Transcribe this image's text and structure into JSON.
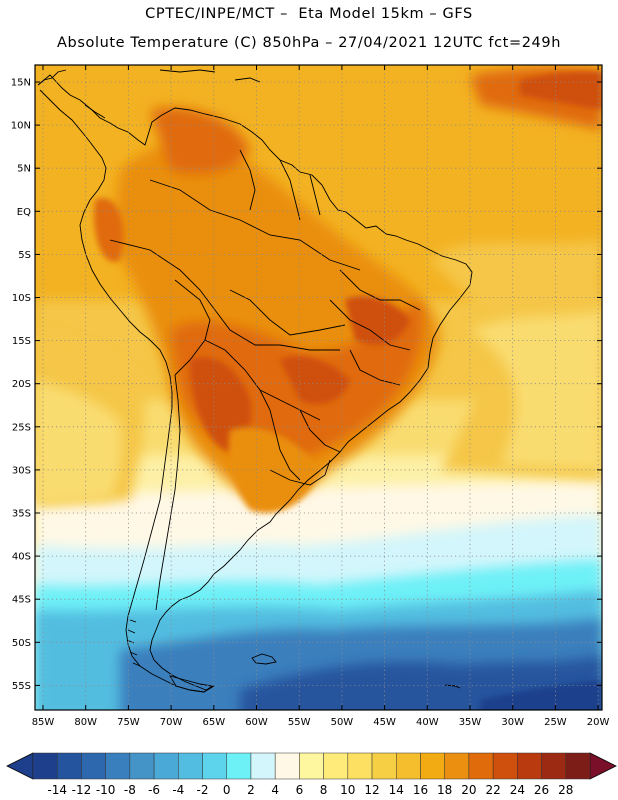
{
  "header": {
    "line1": "CPTEC/INPE/MCT –  Eta Model 15km – GFS",
    "line2": "Absolute Temperature (C) 850hPa – 27/04/2021 12UTC fct=249h"
  },
  "axes": {
    "lat_labels": [
      "15N",
      "10N",
      "5N",
      "EQ",
      "5S",
      "10S",
      "15S",
      "20S",
      "25S",
      "30S",
      "35S",
      "40S",
      "45S",
      "50S",
      "55S"
    ],
    "lon_labels": [
      "85W",
      "80W",
      "75W",
      "70W",
      "65W",
      "60W",
      "55W",
      "50W",
      "45W",
      "40W",
      "35W",
      "30W",
      "25W",
      "20W"
    ]
  },
  "colorbar": {
    "labels": [
      "-14",
      "-12",
      "-10",
      "-8",
      "-6",
      "-4",
      "-2",
      "0",
      "2",
      "4",
      "6",
      "8",
      "10",
      "12",
      "14",
      "16",
      "18",
      "20",
      "22",
      "24",
      "26",
      "28"
    ],
    "colors": [
      "#1e3f8c",
      "#25549e",
      "#2d68ae",
      "#3a7fbd",
      "#4594c8",
      "#4aa9d6",
      "#52bde0",
      "#5dd3ec",
      "#6ef0f7",
      "#d2f6fb",
      "#fff8e6",
      "#fff7a0",
      "#ffeb7a",
      "#fde061",
      "#f7cf45",
      "#f5be2c",
      "#f2ab12",
      "#ea8f0f",
      "#e06b0a",
      "#cf4f0c",
      "#b93a0e",
      "#9c2a12",
      "#7d1d18"
    ],
    "low_arrow_color": "#1e3f8c",
    "high_arrow_color": "#7a0f2a"
  },
  "map": {
    "frame_color": "#000000",
    "grid_color": "#8a8a8a",
    "coast_color": "#000000"
  }
}
